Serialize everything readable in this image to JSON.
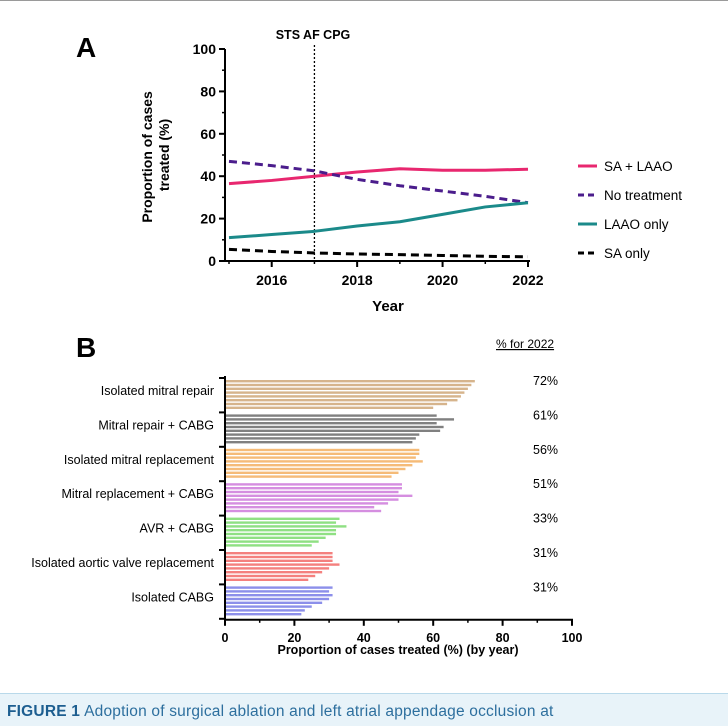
{
  "chart_data": [
    {
      "type": "line",
      "panel_label": "A",
      "xlabel": "Year",
      "ylabel": "Proportion of cases treated (%)",
      "ylim": [
        0,
        100
      ],
      "xlim": [
        2015,
        2022
      ],
      "xticks": [
        2016,
        2018,
        2020,
        2022
      ],
      "yticks": [
        0,
        20,
        40,
        60,
        80,
        100
      ],
      "annotation": {
        "label": "STS AF CPG",
        "x": 2017
      },
      "legend_position": "right",
      "x": [
        2015,
        2016,
        2017,
        2018,
        2019,
        2020,
        2021,
        2022
      ],
      "series": [
        {
          "name": "SA + LAAO",
          "color": "#e8276f",
          "dash": "solid",
          "values": [
            36.5,
            38,
            40,
            42,
            43.5,
            42.8,
            42.8,
            43.3
          ]
        },
        {
          "name": "No treatment",
          "color": "#4b1d8c",
          "dash": "dashed",
          "values": [
            47,
            45,
            42.5,
            38.5,
            35.5,
            33,
            30.5,
            27.5
          ]
        },
        {
          "name": "LAAO only",
          "color": "#1b8a8a",
          "dash": "solid",
          "values": [
            11,
            12.5,
            14,
            16.5,
            18.5,
            22,
            25.5,
            27.5
          ]
        },
        {
          "name": "SA only",
          "color": "#000000",
          "dash": "dashed",
          "values": [
            5.5,
            4.5,
            3.8,
            3.3,
            3,
            2.6,
            2.2,
            2
          ]
        }
      ]
    },
    {
      "type": "bar",
      "orientation": "horizontal",
      "panel_label": "B",
      "xlabel": "Proportion of cases treated (%) (by year)",
      "xlim": [
        0,
        100
      ],
      "xticks": [
        0,
        20,
        40,
        60,
        80,
        100
      ],
      "years_per_group": 8,
      "right_header": "% for 2022",
      "groups": [
        {
          "name": "Isolated mitral repair",
          "color": "#d6b48c",
          "values": [
            60,
            64,
            67,
            68,
            69,
            70,
            71,
            72
          ],
          "label_2022": "72%"
        },
        {
          "name": "Mitral repair + CABG",
          "color": "#808080",
          "values": [
            54,
            55,
            56,
            62,
            63,
            61,
            66,
            61
          ],
          "label_2022": "61%"
        },
        {
          "name": "Isolated mitral replacement",
          "color": "#f5bb78",
          "values": [
            48,
            50,
            52,
            54,
            57,
            55,
            56,
            56
          ],
          "label_2022": "56%"
        },
        {
          "name": "Mitral replacement + CABG",
          "color": "#d58ee0",
          "values": [
            45,
            43,
            47,
            50,
            54,
            50,
            51,
            51
          ],
          "label_2022": "51%"
        },
        {
          "name": "AVR + CABG",
          "color": "#8fe083",
          "values": [
            25,
            27,
            29,
            32,
            32,
            35,
            32,
            33
          ],
          "label_2022": "33%"
        },
        {
          "name": "Isolated aortic valve replacement",
          "color": "#f4807e",
          "values": [
            24,
            26,
            28,
            30,
            33,
            31,
            31,
            31
          ],
          "label_2022": "31%"
        },
        {
          "name": "Isolated CABG",
          "color": "#8c8fea",
          "values": [
            22,
            23,
            25,
            28,
            30,
            31,
            30,
            31
          ],
          "label_2022": "31%"
        }
      ]
    }
  ],
  "caption": {
    "label": "FIGURE 1",
    "text": "Adoption of surgical ablation and left atrial appendage occlusion at"
  }
}
